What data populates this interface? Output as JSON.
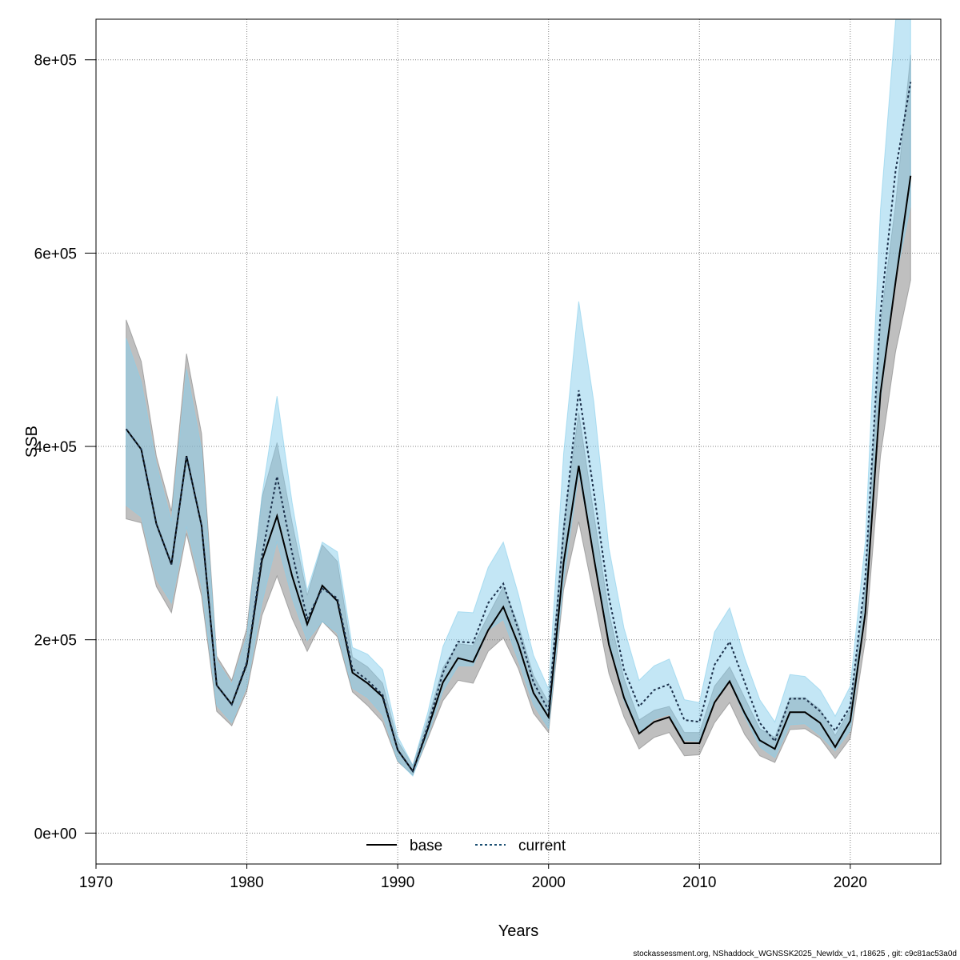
{
  "chart_data": {
    "type": "line",
    "title": "",
    "xlabel": "Years",
    "ylabel": "SSB",
    "xlim": [
      1970,
      2026
    ],
    "ylim": [
      -32000,
      842000
    ],
    "x_ticks": [
      1970,
      1980,
      1990,
      2000,
      2010,
      2020
    ],
    "x_tick_labels": [
      "1970",
      "1980",
      "1990",
      "2000",
      "2010",
      "2020"
    ],
    "y_ticks": [
      0,
      200000,
      400000,
      600000,
      800000
    ],
    "y_tick_labels": [
      "0e+00",
      "2e+05",
      "4e+05",
      "6e+05",
      "8e+05"
    ],
    "grid": true,
    "legend_position": "bottom",
    "x": [
      1972,
      1973,
      1974,
      1975,
      1976,
      1977,
      1978,
      1979,
      1980,
      1981,
      1982,
      1983,
      1984,
      1985,
      1986,
      1987,
      1988,
      1989,
      1990,
      1991,
      1992,
      1993,
      1994,
      1995,
      1996,
      1997,
      1998,
      1999,
      2000,
      2001,
      2002,
      2003,
      2004,
      2005,
      2006,
      2007,
      2008,
      2009,
      2010,
      2011,
      2012,
      2013,
      2014,
      2015,
      2016,
      2017,
      2018,
      2019,
      2020,
      2021,
      2022,
      2023,
      2024
    ],
    "series": [
      {
        "name": "base",
        "line_style": "solid",
        "color": "#000000",
        "band_color": "#808080",
        "values": [
          418000,
          397000,
          320000,
          278000,
          390000,
          318000,
          153000,
          133000,
          175000,
          282000,
          328000,
          266000,
          216000,
          256000,
          240000,
          166000,
          155000,
          141000,
          86000,
          64000,
          108000,
          156000,
          181000,
          177000,
          210000,
          234000,
          195000,
          145000,
          120000,
          280000,
          380000,
          285000,
          195000,
          140000,
          103000,
          115000,
          120000,
          93000,
          93000,
          135000,
          157000,
          124000,
          96000,
          87000,
          125000,
          125000,
          114000,
          89000,
          116000,
          228000,
          455000,
          570000,
          680000
        ],
        "lower": [
          325000,
          321000,
          255000,
          228000,
          310000,
          245000,
          126000,
          111000,
          147000,
          225000,
          266000,
          222000,
          188000,
          219000,
          203000,
          146000,
          132000,
          115000,
          74000,
          60000,
          98000,
          137000,
          158000,
          155000,
          188000,
          202000,
          170000,
          124000,
          104000,
          252000,
          322000,
          245000,
          165000,
          120000,
          87000,
          99000,
          104000,
          80000,
          81000,
          114000,
          135000,
          102000,
          80000,
          73000,
          107000,
          108000,
          98000,
          77000,
          98000,
          200000,
          390000,
          498000,
          572000
        ],
        "upper": [
          531000,
          488000,
          390000,
          333000,
          496000,
          413000,
          183000,
          158000,
          212000,
          347000,
          404000,
          321000,
          246000,
          298000,
          281000,
          182000,
          172000,
          155000,
          95000,
          70000,
          118000,
          171000,
          196000,
          194000,
          225000,
          255000,
          215000,
          163000,
          135000,
          320000,
          435000,
          330000,
          228000,
          160000,
          117000,
          127000,
          131000,
          104000,
          104000,
          152000,
          172000,
          140000,
          108000,
          99000,
          140000,
          140000,
          128000,
          101000,
          128000,
          256000,
          528000,
          650000,
          805000
        ]
      },
      {
        "name": "current",
        "line_style": "dotted",
        "color": "#1b2f4a",
        "band_color": "#87ceeb",
        "values": [
          418000,
          397000,
          320000,
          278000,
          390000,
          318000,
          153000,
          133000,
          177000,
          287000,
          369000,
          290000,
          222000,
          253000,
          243000,
          170000,
          158000,
          143000,
          86000,
          64000,
          111000,
          166000,
          198000,
          197000,
          238000,
          258000,
          210000,
          156000,
          127000,
          313000,
          458000,
          353000,
          244000,
          169000,
          131000,
          148000,
          154000,
          117000,
          115000,
          174000,
          198000,
          156000,
          114000,
          95000,
          139000,
          139000,
          126000,
          106000,
          131000,
          265000,
          538000,
          685000,
          777000
        ],
        "lower": [
          339000,
          327000,
          263000,
          238000,
          317000,
          255000,
          132000,
          114000,
          152000,
          238000,
          302000,
          243000,
          199000,
          219000,
          207000,
          150000,
          140000,
          122000,
          75000,
          59000,
          101000,
          147000,
          173000,
          173000,
          210000,
          221000,
          178000,
          133000,
          108000,
          261000,
          372000,
          288000,
          199000,
          137000,
          104000,
          118000,
          123000,
          96000,
          95000,
          139000,
          156000,
          121000,
          89000,
          78000,
          112000,
          113000,
          101000,
          85000,
          106000,
          226000,
          448000,
          573000,
          649000
        ],
        "upper": [
          512000,
          467000,
          382000,
          323000,
          480000,
          397000,
          179000,
          154000,
          204000,
          349000,
          452000,
          342000,
          251000,
          301000,
          291000,
          192000,
          185000,
          169000,
          100000,
          70000,
          125000,
          193000,
          229000,
          228000,
          275000,
          301000,
          247000,
          184000,
          149000,
          393000,
          550000,
          446000,
          295000,
          212000,
          158000,
          173000,
          180000,
          138000,
          135000,
          208000,
          233000,
          181000,
          138000,
          115000,
          164000,
          162000,
          148000,
          121000,
          152000,
          302000,
          645000,
          840000,
          935000
        ]
      }
    ]
  },
  "footer_text": "stockassessment.org, NShaddock_WGNSSK2025_NewIdx_v1, r18625 , git: c9c81ac53a0d"
}
